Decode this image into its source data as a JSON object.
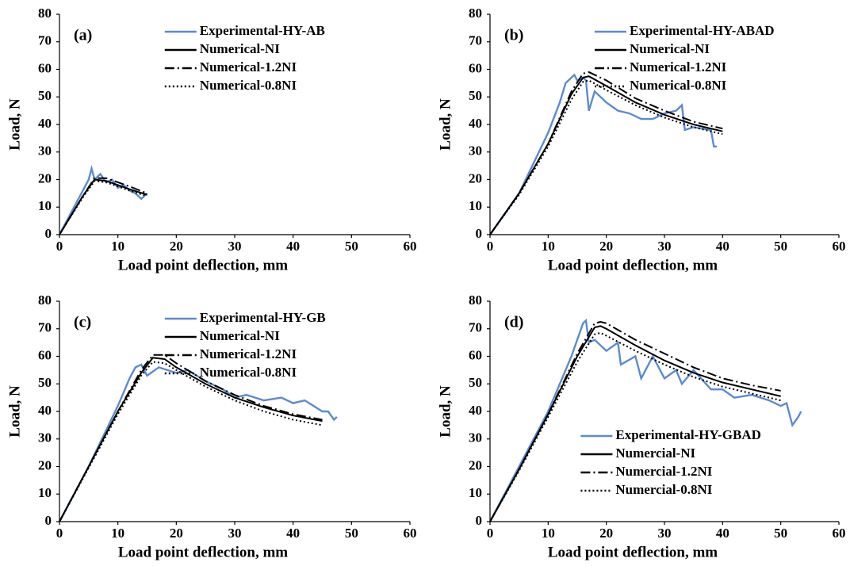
{
  "chart_data": [
    {
      "type": "line",
      "label": "(a)",
      "xlabel": "Load point deflection, mm",
      "ylabel": "Load, N",
      "xlim": [
        0,
        60
      ],
      "xticks": [
        0,
        10,
        20,
        30,
        40,
        50,
        60
      ],
      "ylim": [
        0,
        80
      ],
      "yticks": [
        0,
        10,
        20,
        30,
        40,
        50,
        60,
        70,
        80
      ],
      "legend": "upper right",
      "series": [
        {
          "name": "Experimental-HY-AB",
          "color": "#5b8bd0",
          "style": "solid",
          "x": [
            0,
            1,
            2,
            3,
            4,
            5,
            5.5,
            6,
            6.5,
            7,
            8,
            9,
            10,
            11,
            12,
            13,
            14,
            15
          ],
          "values": [
            0,
            4,
            8,
            12,
            16,
            20,
            24,
            20,
            21,
            22,
            19,
            20,
            17,
            18,
            16,
            15,
            13,
            15
          ]
        },
        {
          "name": "Numerical-NI",
          "color": "#000000",
          "style": "solid",
          "x": [
            0,
            2,
            4,
            6,
            8,
            10,
            12,
            15
          ],
          "values": [
            0,
            7,
            14,
            20,
            19.5,
            18,
            16.5,
            14.5
          ]
        },
        {
          "name": "Numerical-1.2NI",
          "color": "#000000",
          "style": "dashdot",
          "x": [
            0,
            2,
            4,
            6,
            8,
            10,
            12,
            15
          ],
          "values": [
            0,
            7,
            14,
            20.5,
            20.5,
            19,
            17.5,
            15
          ]
        },
        {
          "name": "Numerical-0.8NI",
          "color": "#000000",
          "style": "dot",
          "x": [
            0,
            2,
            4,
            6,
            8,
            10,
            12,
            15
          ],
          "values": [
            0,
            6.8,
            13.5,
            19.5,
            19,
            17.5,
            16,
            14
          ]
        }
      ]
    },
    {
      "type": "line",
      "label": "(b)",
      "xlabel": "Load point deflection, mm",
      "ylabel": "Load, N",
      "xlim": [
        0,
        60
      ],
      "xticks": [
        0,
        10,
        20,
        30,
        40,
        50,
        60
      ],
      "ylim": [
        0,
        80
      ],
      "yticks": [
        0,
        10,
        20,
        30,
        40,
        50,
        60,
        70,
        80
      ],
      "legend": "upper right",
      "series": [
        {
          "name": "Experimental-HY-ABAD",
          "color": "#5b8bd0",
          "style": "solid",
          "x": [
            0,
            5,
            10,
            12,
            13,
            14,
            14.5,
            15,
            16,
            16.5,
            17,
            18,
            20,
            22,
            24,
            26,
            28,
            30,
            32,
            33,
            33.5,
            35,
            38,
            38.5,
            39
          ],
          "values": [
            0,
            15,
            37,
            48,
            55,
            57,
            58,
            56,
            57,
            56,
            45,
            52,
            48,
            45,
            44,
            42,
            42,
            44,
            45,
            47,
            38,
            39,
            38,
            32,
            32
          ]
        },
        {
          "name": "Numerical-NI",
          "color": "#000000",
          "style": "solid",
          "x": [
            0,
            5,
            10,
            14,
            16,
            17,
            20,
            25,
            30,
            35,
            40
          ],
          "values": [
            0,
            15,
            33,
            51,
            57,
            57.5,
            54,
            48,
            43.5,
            40,
            37.5
          ]
        },
        {
          "name": "Numerical-1.2NI",
          "color": "#000000",
          "style": "dashdot",
          "x": [
            0,
            5,
            10,
            14,
            16,
            17,
            20,
            25,
            30,
            35,
            40
          ],
          "values": [
            0,
            15,
            33,
            52,
            58.5,
            59,
            56,
            49.5,
            45,
            41,
            38.5
          ]
        },
        {
          "name": "Numerical-0.8NI",
          "color": "#000000",
          "style": "dot",
          "x": [
            0,
            5,
            10,
            14,
            16,
            17,
            20,
            25,
            30,
            35,
            40
          ],
          "values": [
            0,
            14.5,
            32,
            49,
            55.5,
            56,
            52.5,
            47,
            42.5,
            39,
            36.5
          ]
        }
      ]
    },
    {
      "type": "line",
      "label": "(c)",
      "xlabel": "Load point deflection, mm",
      "ylabel": "Load, N",
      "xlim": [
        0,
        60
      ],
      "xticks": [
        0,
        10,
        20,
        30,
        40,
        50,
        60
      ],
      "ylim": [
        0,
        80
      ],
      "yticks": [
        0,
        10,
        20,
        30,
        40,
        50,
        60,
        70,
        80
      ],
      "legend": "upper right",
      "series": [
        {
          "name": "Experimental-HY-GB",
          "color": "#5b8bd0",
          "style": "solid",
          "x": [
            0,
            5,
            10,
            12,
            13,
            14,
            15,
            17,
            20,
            22,
            25,
            28,
            30,
            32,
            35,
            38,
            40,
            42,
            45,
            46,
            47,
            47.5
          ],
          "values": [
            0,
            20,
            42,
            52,
            56,
            57,
            53,
            56,
            54,
            55,
            51,
            48,
            45,
            46,
            44,
            45,
            43,
            44,
            40,
            40,
            37,
            38
          ]
        },
        {
          "name": "Numerical-NI",
          "color": "#000000",
          "style": "solid",
          "x": [
            0,
            5,
            10,
            14,
            16,
            18,
            20,
            25,
            30,
            35,
            40,
            45
          ],
          "values": [
            0,
            20,
            40,
            54,
            59.5,
            59,
            56,
            50,
            45,
            41.5,
            38.5,
            36.5
          ]
        },
        {
          "name": "Numerical-1.2NI",
          "color": "#000000",
          "style": "dashdot",
          "x": [
            0,
            5,
            10,
            14,
            16,
            18,
            20,
            25,
            30,
            35,
            40,
            45
          ],
          "values": [
            0,
            20,
            40,
            55,
            60.5,
            60.5,
            57.5,
            51,
            46,
            42,
            39,
            37
          ]
        },
        {
          "name": "Numerical-0.8NI",
          "color": "#000000",
          "style": "dot",
          "x": [
            0,
            5,
            10,
            14,
            16,
            18,
            20,
            25,
            30,
            35,
            40,
            45
          ],
          "values": [
            0,
            19.5,
            39,
            53,
            58,
            57.5,
            55,
            49,
            44,
            40,
            37,
            35
          ]
        }
      ]
    },
    {
      "type": "line",
      "label": "(d)",
      "xlabel": "Load point deflection, mm",
      "ylabel": "Load, N",
      "xlim": [
        0,
        60
      ],
      "xticks": [
        0,
        10,
        20,
        30,
        40,
        50,
        60
      ],
      "ylim": [
        0,
        80
      ],
      "yticks": [
        0,
        10,
        20,
        30,
        40,
        50,
        60,
        70,
        80
      ],
      "legend": "lower right",
      "series": [
        {
          "name": "Experimental-HY-GBAD",
          "color": "#5b8bd0",
          "style": "solid",
          "x": [
            0,
            5,
            10,
            14,
            15,
            16,
            16.5,
            17,
            18,
            20,
            22,
            22.5,
            25,
            26,
            28,
            30,
            32,
            33,
            35,
            38,
            40,
            42,
            45,
            48,
            50,
            51,
            52,
            53,
            53.5
          ],
          "values": [
            0,
            20,
            40,
            60,
            66,
            72,
            73,
            65,
            66,
            62,
            65,
            57,
            60,
            52,
            60,
            52,
            55,
            50,
            55,
            48,
            48,
            45,
            46,
            44,
            42,
            43,
            35,
            38,
            40
          ]
        },
        {
          "name": "Numercial-NI",
          "color": "#000000",
          "style": "solid",
          "x": [
            0,
            5,
            10,
            15,
            18,
            19,
            20,
            25,
            30,
            35,
            40,
            45,
            50
          ],
          "values": [
            0,
            19,
            39,
            60,
            70.5,
            71,
            70,
            64,
            58.5,
            54,
            50.5,
            48,
            45.5
          ]
        },
        {
          "name": "Numercial-1.2NI",
          "color": "#000000",
          "style": "dashdot",
          "x": [
            0,
            5,
            10,
            15,
            18,
            19,
            20,
            25,
            30,
            35,
            40,
            45,
            50
          ],
          "values": [
            0,
            19,
            39,
            61,
            72,
            72.5,
            72,
            66,
            61,
            56,
            52,
            49.5,
            47.5
          ]
        },
        {
          "name": "Numercial-0.8NI",
          "color": "#000000",
          "style": "dot",
          "x": [
            0,
            5,
            10,
            15,
            18,
            19,
            20,
            25,
            30,
            35,
            40,
            45,
            50
          ],
          "values": [
            0,
            18.5,
            38,
            58,
            68,
            68.5,
            67.5,
            62,
            57,
            52.5,
            49,
            46.5,
            44
          ]
        }
      ]
    }
  ]
}
